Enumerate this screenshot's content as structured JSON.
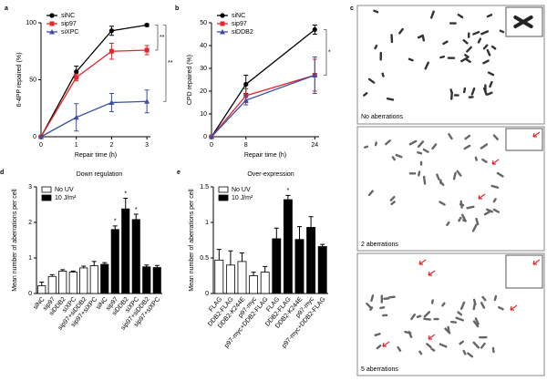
{
  "chart_data": [
    {
      "type": "line",
      "panel": "a",
      "xlabel": "Repair time (h)",
      "ylabel": "6-4PP repaired (%)",
      "x": [
        0,
        1,
        2,
        3
      ],
      "xlim": [
        0,
        3.1
      ],
      "xticks": [
        0,
        1,
        2,
        3
      ],
      "ylim": [
        0,
        100
      ],
      "yticks": [
        0,
        50,
        100
      ],
      "series": [
        {
          "name": "siNC",
          "color": "#000000",
          "marker": "circle",
          "values": [
            0,
            57,
            93,
            98
          ],
          "errors": [
            0,
            5,
            4,
            1
          ]
        },
        {
          "name": "sip97",
          "color": "#e8232a",
          "marker": "square",
          "values": [
            0,
            52,
            75,
            76
          ],
          "errors": [
            0,
            3,
            7,
            4
          ]
        },
        {
          "name": "siXPC",
          "color": "#3a4fa3",
          "marker": "triangle",
          "values": [
            0,
            17,
            30,
            31
          ],
          "errors": [
            0,
            12,
            8,
            10
          ]
        }
      ],
      "annotations": [
        "**",
        "**"
      ]
    },
    {
      "type": "line",
      "panel": "b",
      "xlabel": "Repair time (h)",
      "ylabel": "CPD repaired (%)",
      "x": [
        0,
        8,
        24
      ],
      "xlim": [
        0,
        25
      ],
      "xticks": [
        0,
        8,
        24
      ],
      "ylim": [
        0,
        50
      ],
      "yticks": [
        0,
        10,
        20,
        30,
        40,
        50
      ],
      "series": [
        {
          "name": "siNC",
          "color": "#000000",
          "marker": "circle",
          "values": [
            0,
            23,
            47
          ],
          "errors": [
            0,
            4,
            2
          ]
        },
        {
          "name": "sip97",
          "color": "#e8232a",
          "marker": "square",
          "values": [
            0,
            18,
            27
          ],
          "errors": [
            0,
            3,
            7
          ]
        },
        {
          "name": "siDDB2",
          "color": "#3a4fa3",
          "marker": "triangle",
          "values": [
            0,
            16,
            27
          ],
          "errors": [
            0,
            2,
            8
          ]
        }
      ],
      "annotations": [
        "*"
      ]
    },
    {
      "type": "bar",
      "panel": "d",
      "title": "Down regulation",
      "ylabel": "Mean number of aberrations per cell",
      "ylim": [
        0,
        3
      ],
      "yticks": [
        0,
        1,
        2,
        3
      ],
      "categories": [
        "siNC",
        "sip97",
        "siDDB2",
        "siXPC",
        "sip97+siDDB2",
        "sip97+siXPC",
        "siNC",
        "sip97",
        "siDDB2",
        "siXPC",
        "sip97+siDDB2",
        "sip97+siXPC"
      ],
      "series": [
        {
          "name": "No UV",
          "color": "#ffffff",
          "values": [
            0.22,
            0.48,
            0.63,
            0.6,
            0.72,
            0.78,
            null,
            null,
            null,
            null,
            null,
            null
          ],
          "errors": [
            0.1,
            0.05,
            0.04,
            0.03,
            0.05,
            0.12,
            null,
            null,
            null,
            null,
            null,
            null
          ],
          "annotations": [
            null,
            null,
            null,
            null,
            null,
            null,
            null,
            null,
            null,
            null,
            null,
            null
          ]
        },
        {
          "name": "10 J/m²",
          "color": "#000000",
          "values": [
            null,
            null,
            null,
            null,
            null,
            null,
            0.82,
            1.8,
            2.38,
            2.08,
            0.75,
            0.73
          ],
          "errors": [
            null,
            null,
            null,
            null,
            null,
            null,
            0.05,
            0.1,
            0.3,
            0.15,
            0.05,
            0.06
          ],
          "annotations": [
            null,
            null,
            null,
            null,
            null,
            null,
            null,
            "*",
            "*",
            "*",
            null,
            null
          ]
        }
      ]
    },
    {
      "type": "bar",
      "panel": "e",
      "title": "Over-expression",
      "ylabel": "Mean number of aberrations per cell",
      "ylim": [
        0,
        1.5
      ],
      "yticks": [
        0,
        0.5,
        1,
        1.5
      ],
      "categories": [
        "FLAG",
        "DDB2-FLAG",
        "DDB2-K244E",
        "p97-myc",
        "p97-myc+DDB2-FLAG",
        "FLAG",
        "DDB2-FLAG",
        "DDB2-K244E",
        "p97-myc",
        "p97-myc+DDB2-FLAG"
      ],
      "series": [
        {
          "name": "No UV",
          "color": "#ffffff",
          "values": [
            0.47,
            0.4,
            0.45,
            0.25,
            0.3,
            null,
            null,
            null,
            null,
            null
          ],
          "errors": [
            0.15,
            0.2,
            0.12,
            0.05,
            0.08,
            null,
            null,
            null,
            null,
            null
          ],
          "annotations": [
            null,
            null,
            null,
            null,
            null,
            null,
            null,
            null,
            null,
            null
          ]
        },
        {
          "name": "10 J/m²",
          "color": "#000000",
          "values": [
            null,
            null,
            null,
            null,
            null,
            0.77,
            1.32,
            0.76,
            0.93,
            0.66
          ],
          "errors": [
            null,
            null,
            null,
            null,
            null,
            0.15,
            0.06,
            0.18,
            0.15,
            0.03
          ],
          "annotations": [
            null,
            null,
            null,
            null,
            null,
            null,
            "*",
            null,
            null,
            null
          ]
        }
      ]
    }
  ],
  "panel_c": {
    "label": "c",
    "captions": [
      "No aberrations",
      "2 aberrations",
      "5 aberrations"
    ]
  }
}
